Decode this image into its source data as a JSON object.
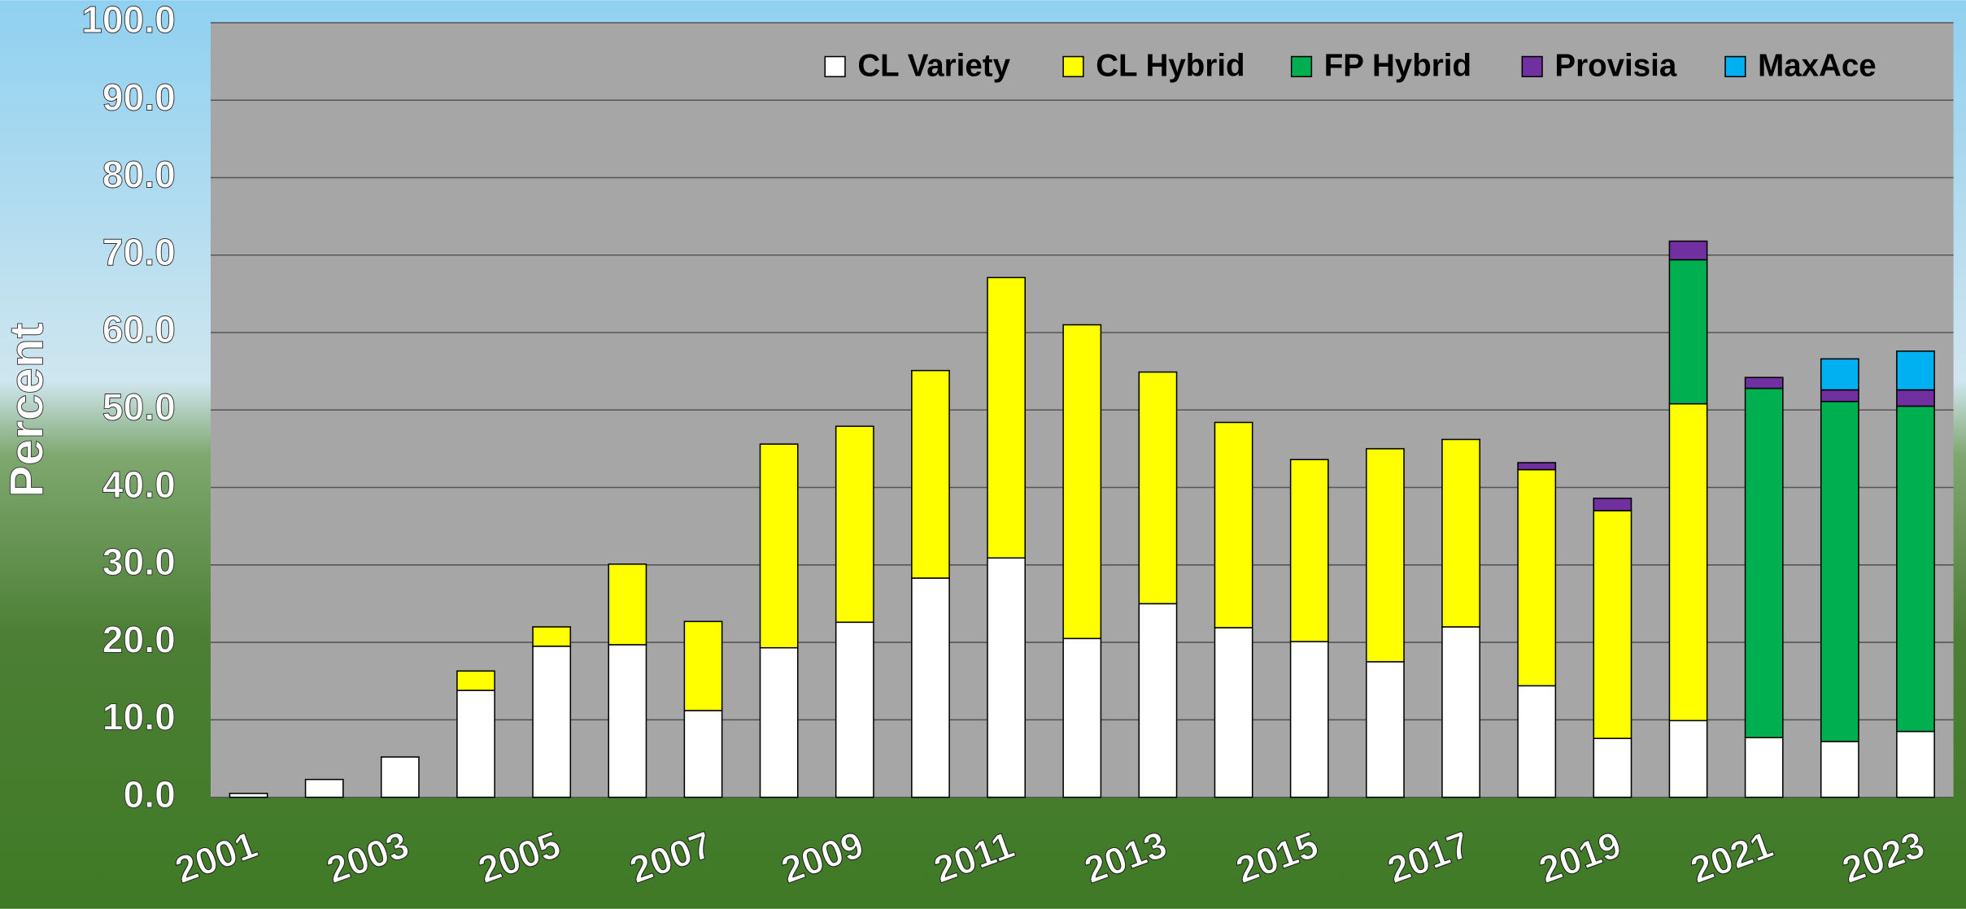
{
  "chart_data": {
    "type": "stacked_bar",
    "y_label": "Percent",
    "categories": [
      "2001",
      null,
      "2003",
      null,
      "2005",
      null,
      "2007",
      null,
      "2009",
      null,
      "2011",
      null,
      "2013",
      null,
      "2015",
      null,
      "2017",
      null,
      "2019",
      null,
      "2021",
      null,
      "2023"
    ],
    "series": [
      {
        "name": "CL Variety",
        "color": "#ffffff",
        "values": [
          0.5,
          2.3,
          5.2,
          13.8,
          19.5,
          19.7,
          11.2,
          19.3,
          22.6,
          28.3,
          30.9,
          20.5,
          25.0,
          21.9,
          20.1,
          17.5,
          22.0,
          14.4,
          7.6,
          9.9,
          7.7,
          7.2,
          8.5
        ]
      },
      {
        "name": "CL Hybrid",
        "color": "#ffff00",
        "values": [
          null,
          null,
          null,
          2.5,
          2.5,
          10.4,
          11.5,
          26.3,
          25.3,
          26.8,
          36.2,
          40.5,
          29.9,
          26.5,
          23.5,
          27.5,
          24.2,
          27.9,
          29.4,
          40.9,
          null,
          null,
          null
        ]
      },
      {
        "name": "FP Hybrid",
        "color": "#00b050",
        "values": [
          null,
          null,
          null,
          null,
          null,
          null,
          null,
          null,
          null,
          null,
          null,
          null,
          null,
          null,
          null,
          null,
          null,
          null,
          null,
          18.6,
          45.1,
          43.9,
          42.0
        ]
      },
      {
        "name": "Provisia",
        "color": "#7030a0",
        "values": [
          null,
          null,
          null,
          null,
          null,
          null,
          null,
          null,
          null,
          null,
          null,
          null,
          null,
          null,
          null,
          null,
          null,
          0.9,
          1.6,
          2.4,
          1.4,
          1.5,
          2.1
        ]
      },
      {
        "name": "MaxAce",
        "color": "#00b0f0",
        "values": [
          null,
          null,
          null,
          null,
          null,
          null,
          null,
          null,
          null,
          null,
          null,
          null,
          null,
          null,
          null,
          null,
          null,
          null,
          null,
          null,
          null,
          4.0,
          5.0
        ]
      }
    ],
    "ylim": [
      0,
      100
    ],
    "yticks": [
      {
        "value": 0,
        "label": "0.0"
      },
      {
        "value": 10,
        "label": "10.0"
      },
      {
        "value": 20,
        "label": "20.0"
      },
      {
        "value": 30,
        "label": "30.0"
      },
      {
        "value": 40,
        "label": "40.0"
      },
      {
        "value": 50,
        "label": "50.0"
      },
      {
        "value": 60,
        "label": "60.0"
      },
      {
        "value": 70,
        "label": "70.0"
      },
      {
        "value": 80,
        "label": "80.0"
      },
      {
        "value": 90,
        "label": "90.0"
      },
      {
        "value": 100,
        "label": "100.0"
      }
    ],
    "grid": true,
    "legend": "top"
  }
}
